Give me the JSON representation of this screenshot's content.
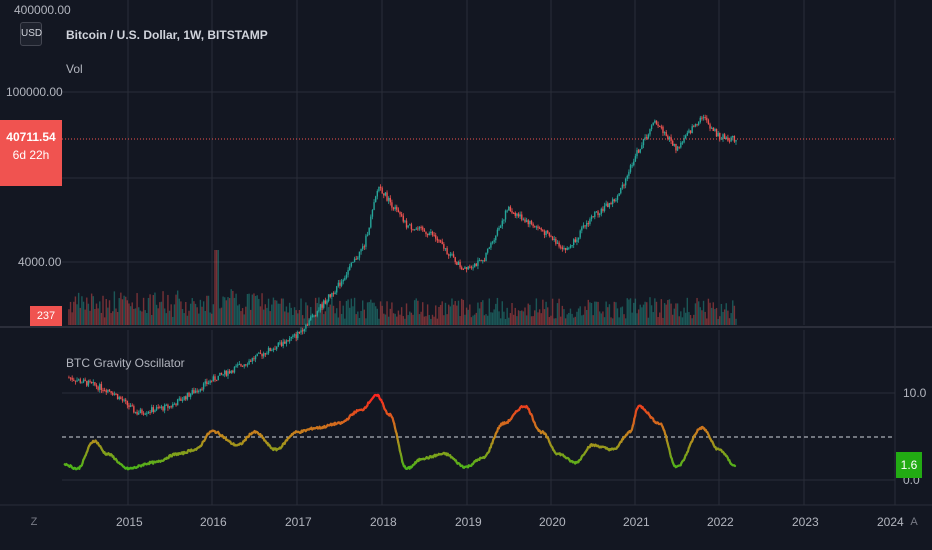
{
  "header": {
    "currency_button": "USD",
    "symbol_title": "Bitcoin / U.S. Dollar, 1W, BITSTAMP",
    "volume_label": "Vol"
  },
  "price_axis": {
    "ticks": [
      "400000.00",
      "100000.00",
      "4000.00"
    ],
    "current_price": "40711.54",
    "countdown": "6d 22h",
    "volume_value": "237"
  },
  "oscillator": {
    "title": "BTC Gravity Oscillator",
    "ticks": [
      "10.0",
      "0.0"
    ],
    "current_value": "1.6"
  },
  "time_axis": {
    "labels": [
      "2015",
      "2016",
      "2017",
      "2018",
      "2019",
      "2020",
      "2021",
      "2022",
      "2023",
      "2024"
    ]
  },
  "controls": {
    "left_button": "Z",
    "right_button": "A"
  },
  "colors": {
    "background": "#131722",
    "candle_up": "#26a69a",
    "candle_down": "#ef5350",
    "price_line": "#f05350",
    "osc_low": "#22c41a",
    "osc_mid": "#c08a1e",
    "osc_high": "#ff2020"
  },
  "chart_data": [
    {
      "type": "line",
      "title": "Bitcoin / U.S. Dollar, 1W, BITSTAMP",
      "scale": "log",
      "x": [
        2014.3,
        2014.8,
        2015.1,
        2015.5,
        2016.0,
        2016.5,
        2017.0,
        2017.5,
        2017.8,
        2017.97,
        2018.3,
        2018.6,
        2018.95,
        2019.2,
        2019.5,
        2019.9,
        2020.2,
        2020.5,
        2020.8,
        2021.0,
        2021.25,
        2021.5,
        2021.8,
        2022.0,
        2022.2
      ],
      "y": [
        450,
        350,
        230,
        260,
        430,
        650,
        1000,
        2600,
        5500,
        17000,
        8000,
        6800,
        3600,
        4000,
        11000,
        7300,
        5000,
        9500,
        13500,
        29000,
        58000,
        34000,
        64000,
        43000,
        40711.54
      ],
      "ylim": [
        100,
        400000
      ]
    },
    {
      "type": "line",
      "title": "BTC Gravity Oscillator",
      "x": [
        2014.25,
        2014.4,
        2014.6,
        2014.75,
        2015.0,
        2015.3,
        2015.6,
        2015.8,
        2016.0,
        2016.3,
        2016.5,
        2016.75,
        2017.0,
        2017.25,
        2017.5,
        2017.75,
        2017.95,
        2018.1,
        2018.3,
        2018.5,
        2018.75,
        2019.0,
        2019.2,
        2019.45,
        2019.7,
        2019.9,
        2020.1,
        2020.3,
        2020.5,
        2020.75,
        2020.95,
        2021.05,
        2021.3,
        2021.5,
        2021.8,
        2022.0,
        2022.2
      ],
      "y": [
        1.8,
        1.3,
        4.5,
        3.0,
        1.3,
        2.0,
        3.0,
        3.5,
        5.6,
        4.0,
        5.5,
        3.5,
        5.5,
        6.0,
        6.5,
        8.0,
        9.7,
        7.5,
        1.3,
        2.5,
        3.0,
        1.5,
        2.5,
        6.5,
        8.5,
        5.5,
        3.0,
        2.0,
        4.0,
        3.5,
        5.5,
        8.5,
        6.5,
        1.5,
        6.0,
        3.5,
        1.6
      ],
      "threshold": 5.0,
      "ylim": [
        0,
        10
      ]
    }
  ]
}
